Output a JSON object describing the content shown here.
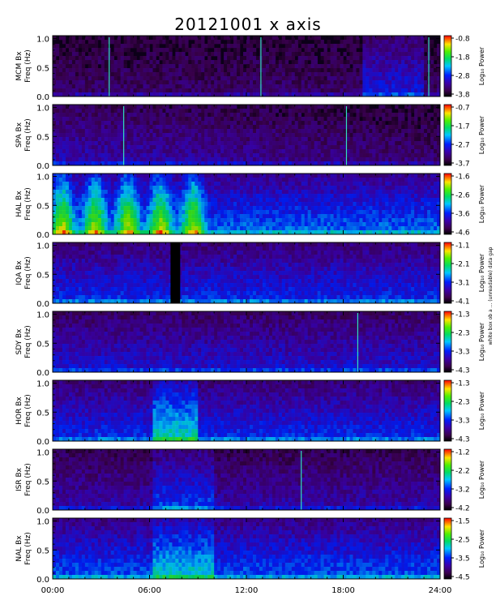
{
  "chart_data": {
    "type": "heatmap",
    "title": "20121001 x axis",
    "xlabel": "",
    "x_ticks": [
      "00:00",
      "06:00",
      "12:00",
      "18:00",
      "24:00"
    ],
    "xlim_hours": [
      0,
      24
    ],
    "y_ticks": [
      "0.0",
      "0.5",
      "1.0"
    ],
    "ylim_hz": [
      0.0,
      1.05
    ],
    "colorbar_label": "Log₁₀ Power",
    "colormap": "rainbow",
    "side_note": "white box ob a ... (unreadable) data gap",
    "panels": [
      {
        "station": "MCM",
        "ylabel": "MCM Bx\nFreq (Hz)",
        "cbar_ticks": [
          "-0.8",
          "-1.8",
          "-2.8",
          "-3.8"
        ],
        "vmin": -3.8,
        "vmax": -0.8
      },
      {
        "station": "SPA",
        "ylabel": "SPA Bx\nFreq (Hz)",
        "cbar_ticks": [
          "-0.7",
          "-1.7",
          "-2.7",
          "-3.7"
        ],
        "vmin": -3.7,
        "vmax": -0.7
      },
      {
        "station": "HAL",
        "ylabel": "HAL Bx\nFreq (Hz)",
        "cbar_ticks": [
          "-1.6",
          "-2.6",
          "-3.6",
          "-4.6"
        ],
        "vmin": -4.6,
        "vmax": -1.6
      },
      {
        "station": "IQA",
        "ylabel": "IQA Bx\nFreq (Hz)",
        "cbar_ticks": [
          "-1.1",
          "-2.1",
          "-3.1",
          "-4.1"
        ],
        "vmin": -4.1,
        "vmax": -1.1,
        "data_gap_hours": [
          7.3,
          7.9
        ]
      },
      {
        "station": "SDY",
        "ylabel": "SDY Bx\nFreq (Hz)",
        "cbar_ticks": [
          "-1.3",
          "-2.3",
          "-3.3",
          "-4.3"
        ],
        "vmin": -4.3,
        "vmax": -1.3
      },
      {
        "station": "HOR",
        "ylabel": "HOR Bx\nFreq (Hz)",
        "cbar_ticks": [
          "-1.3",
          "-2.3",
          "-3.3",
          "-4.3"
        ],
        "vmin": -4.3,
        "vmax": -1.3
      },
      {
        "station": "ISR",
        "ylabel": "ISR Bx\nFreq (Hz)",
        "cbar_ticks": [
          "-1.2",
          "-2.2",
          "-3.2",
          "-4.2"
        ],
        "vmin": -4.2,
        "vmax": -1.2
      },
      {
        "station": "NAL",
        "ylabel": "NAL Bx\nFreq (Hz)",
        "cbar_ticks": [
          "-1.5",
          "-2.5",
          "-3.5",
          "-4.5"
        ],
        "vmin": -4.5,
        "vmax": -1.5
      }
    ]
  }
}
